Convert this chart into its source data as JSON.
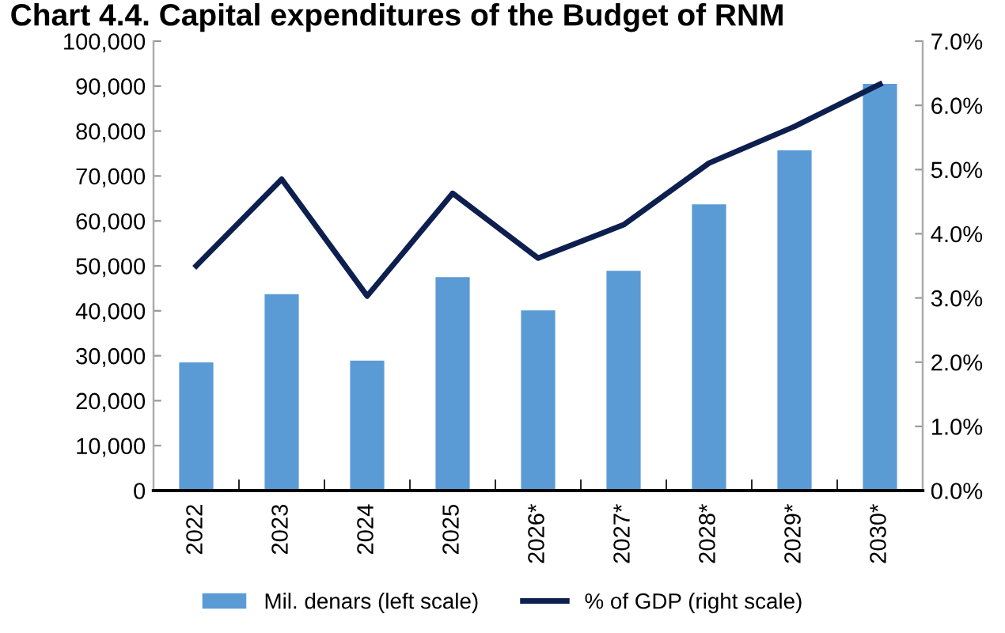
{
  "chart_data": {
    "type": "bar",
    "title": "Chart 4.4. Capital expenditures of the Budget of RNM",
    "categories": [
      "2022",
      "2023",
      "2024",
      "2025",
      "2026*",
      "2027*",
      "2028*",
      "2029*",
      "2030*"
    ],
    "series": [
      {
        "name": "Mil. denars (left scale)",
        "color": "#5b9bd5",
        "values": [
          28500,
          43700,
          28900,
          47500,
          40100,
          48900,
          63700,
          75700,
          90500
        ]
      },
      {
        "name": "% of GDP (right scale)",
        "type": "line",
        "axis": "y2",
        "color": "#0d1f4f",
        "values": [
          3.5,
          4.85,
          3.03,
          4.63,
          3.62,
          4.14,
          5.1,
          5.67,
          6.33
        ]
      }
    ],
    "ylim": [
      0,
      100000
    ],
    "yticks": [
      {
        "value": 0,
        "label": "0"
      },
      {
        "value": 10000,
        "label": "10,000"
      },
      {
        "value": 20000,
        "label": "20,000"
      },
      {
        "value": 30000,
        "label": "30,000"
      },
      {
        "value": 40000,
        "label": "40,000"
      },
      {
        "value": 50000,
        "label": "50,000"
      },
      {
        "value": 60000,
        "label": "60,000"
      },
      {
        "value": 70000,
        "label": "70,000"
      },
      {
        "value": 80000,
        "label": "80,000"
      },
      {
        "value": 90000,
        "label": "90,000"
      },
      {
        "value": 100000,
        "label": "100,000"
      }
    ],
    "y2lim": [
      0,
      7
    ],
    "y2ticks": [
      {
        "value": 0,
        "label": "0.0%"
      },
      {
        "value": 1,
        "label": "1.0%"
      },
      {
        "value": 2,
        "label": "2.0%"
      },
      {
        "value": 3,
        "label": "3.0%"
      },
      {
        "value": 4,
        "label": "4.0%"
      },
      {
        "value": 5,
        "label": "5.0%"
      },
      {
        "value": 6,
        "label": "6.0%"
      },
      {
        "value": 7,
        "label": "7.0%"
      }
    ],
    "grid": false,
    "legend": "bottom"
  }
}
